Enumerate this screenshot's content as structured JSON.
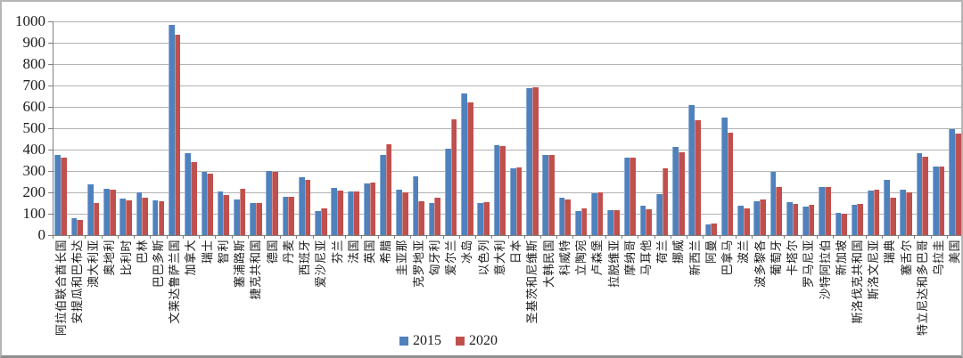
{
  "chart_data": {
    "type": "bar",
    "title": "",
    "xlabel": "",
    "ylabel": "",
    "ylim": [
      0,
      1000
    ],
    "ytick_step": 100,
    "y_tick_labels": [
      "0",
      "100",
      "200",
      "300",
      "400",
      "500",
      "600",
      "700",
      "800",
      "900",
      "1000"
    ],
    "grid": true,
    "legend_position": "bottom-center",
    "categories": [
      "阿拉伯联合酋长国",
      "安提瓜和巴布达",
      "澳大利亚",
      "奥地利",
      "比利时",
      "巴林",
      "巴巴多斯",
      "文莱达鲁萨兰国",
      "加拿大",
      "瑞士",
      "智利",
      "塞浦路斯",
      "捷克共和国",
      "德国",
      "丹麦",
      "西班牙",
      "爱沙尼亚",
      "芬兰",
      "法国",
      "英国",
      "希腊",
      "圭亚那",
      "克罗地亚",
      "匈牙利",
      "爱尔兰",
      "冰岛",
      "以色列",
      "意大利",
      "日本",
      "圣基茨和尼维斯",
      "大韩民国",
      "科威特",
      "立陶宛",
      "卢森堡",
      "拉脱维亚",
      "摩纳哥",
      "马耳他",
      "荷兰",
      "挪威",
      "新西兰",
      "阿曼",
      "巴拿马",
      "波兰",
      "波多黎各",
      "葡萄牙",
      "卡塔尔",
      "罗马尼亚",
      "沙特阿拉伯",
      "新加坡",
      "斯洛伐克共和国",
      "斯洛文尼亚",
      "瑞典",
      "塞舌尔",
      "特立尼达和多巴哥",
      "乌拉圭",
      "美国"
    ],
    "series": [
      {
        "name": "2015",
        "color": "#4F81BD",
        "values": [
          374,
          78,
          237,
          218,
          170,
          200,
          164,
          985,
          385,
          296,
          206,
          168,
          152,
          298,
          180,
          272,
          113,
          220,
          204,
          243,
          374,
          214,
          277,
          148,
          405,
          661,
          149,
          419,
          312,
          687,
          374,
          174,
          112,
          194,
          115,
          364,
          136,
          190,
          414,
          608,
          48,
          548,
          138,
          157,
          296,
          154,
          132,
          225,
          106,
          142,
          210,
          260,
          211,
          385,
          322,
          496
        ]
      },
      {
        "name": "2020",
        "color": "#C0504D",
        "values": [
          361,
          72,
          150,
          213,
          163,
          175,
          159,
          938,
          342,
          288,
          189,
          216,
          152,
          295,
          180,
          258,
          123,
          207,
          204,
          247,
          426,
          201,
          158,
          177,
          540,
          620,
          156,
          418,
          318,
          693,
          374,
          167,
          126,
          201,
          115,
          364,
          120,
          314,
          388,
          539,
          55,
          480,
          124,
          168,
          227,
          144,
          142,
          226,
          100,
          145,
          214,
          177,
          200,
          367,
          322,
          474
        ]
      }
    ],
    "colors": {
      "gridline": "#b2b2b2",
      "axis": "#7f7f7f",
      "text": "#1a1a1a",
      "background": "#ffffff"
    }
  }
}
